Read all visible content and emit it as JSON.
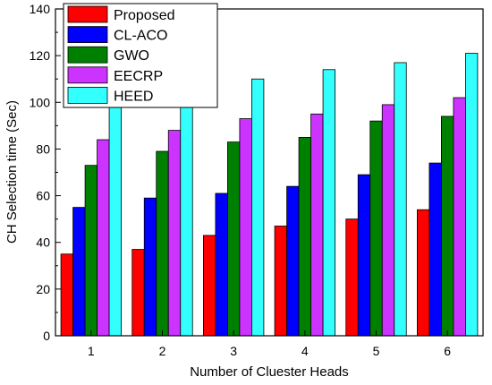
{
  "chart_data": {
    "type": "bar",
    "title": "",
    "xlabel": "Number of Cluester Heads",
    "ylabel": "CH Selection time (Sec)",
    "categories": [
      "1",
      "2",
      "3",
      "4",
      "5",
      "6"
    ],
    "ylim": [
      0,
      140
    ],
    "yticks": [
      "0",
      "20",
      "40",
      "60",
      "80",
      "100",
      "120",
      "140"
    ],
    "grid": false,
    "legend_position": "top-left",
    "series": [
      {
        "name": "Proposed",
        "color": "#ff0000",
        "values": [
          35,
          37,
          43,
          47,
          50,
          54
        ]
      },
      {
        "name": "CL-ACO",
        "color": "#0000ff",
        "values": [
          55,
          59,
          61,
          64,
          69,
          74
        ]
      },
      {
        "name": "GWO",
        "color": "#008000",
        "values": [
          73,
          79,
          83,
          85,
          92,
          94
        ]
      },
      {
        "name": "EECRP",
        "color": "#cc33ff",
        "values": [
          84,
          88,
          93,
          95,
          99,
          102
        ]
      },
      {
        "name": "HEED",
        "color": "#33ffff",
        "values": [
          102,
          105,
          110,
          114,
          117,
          121
        ]
      }
    ]
  }
}
